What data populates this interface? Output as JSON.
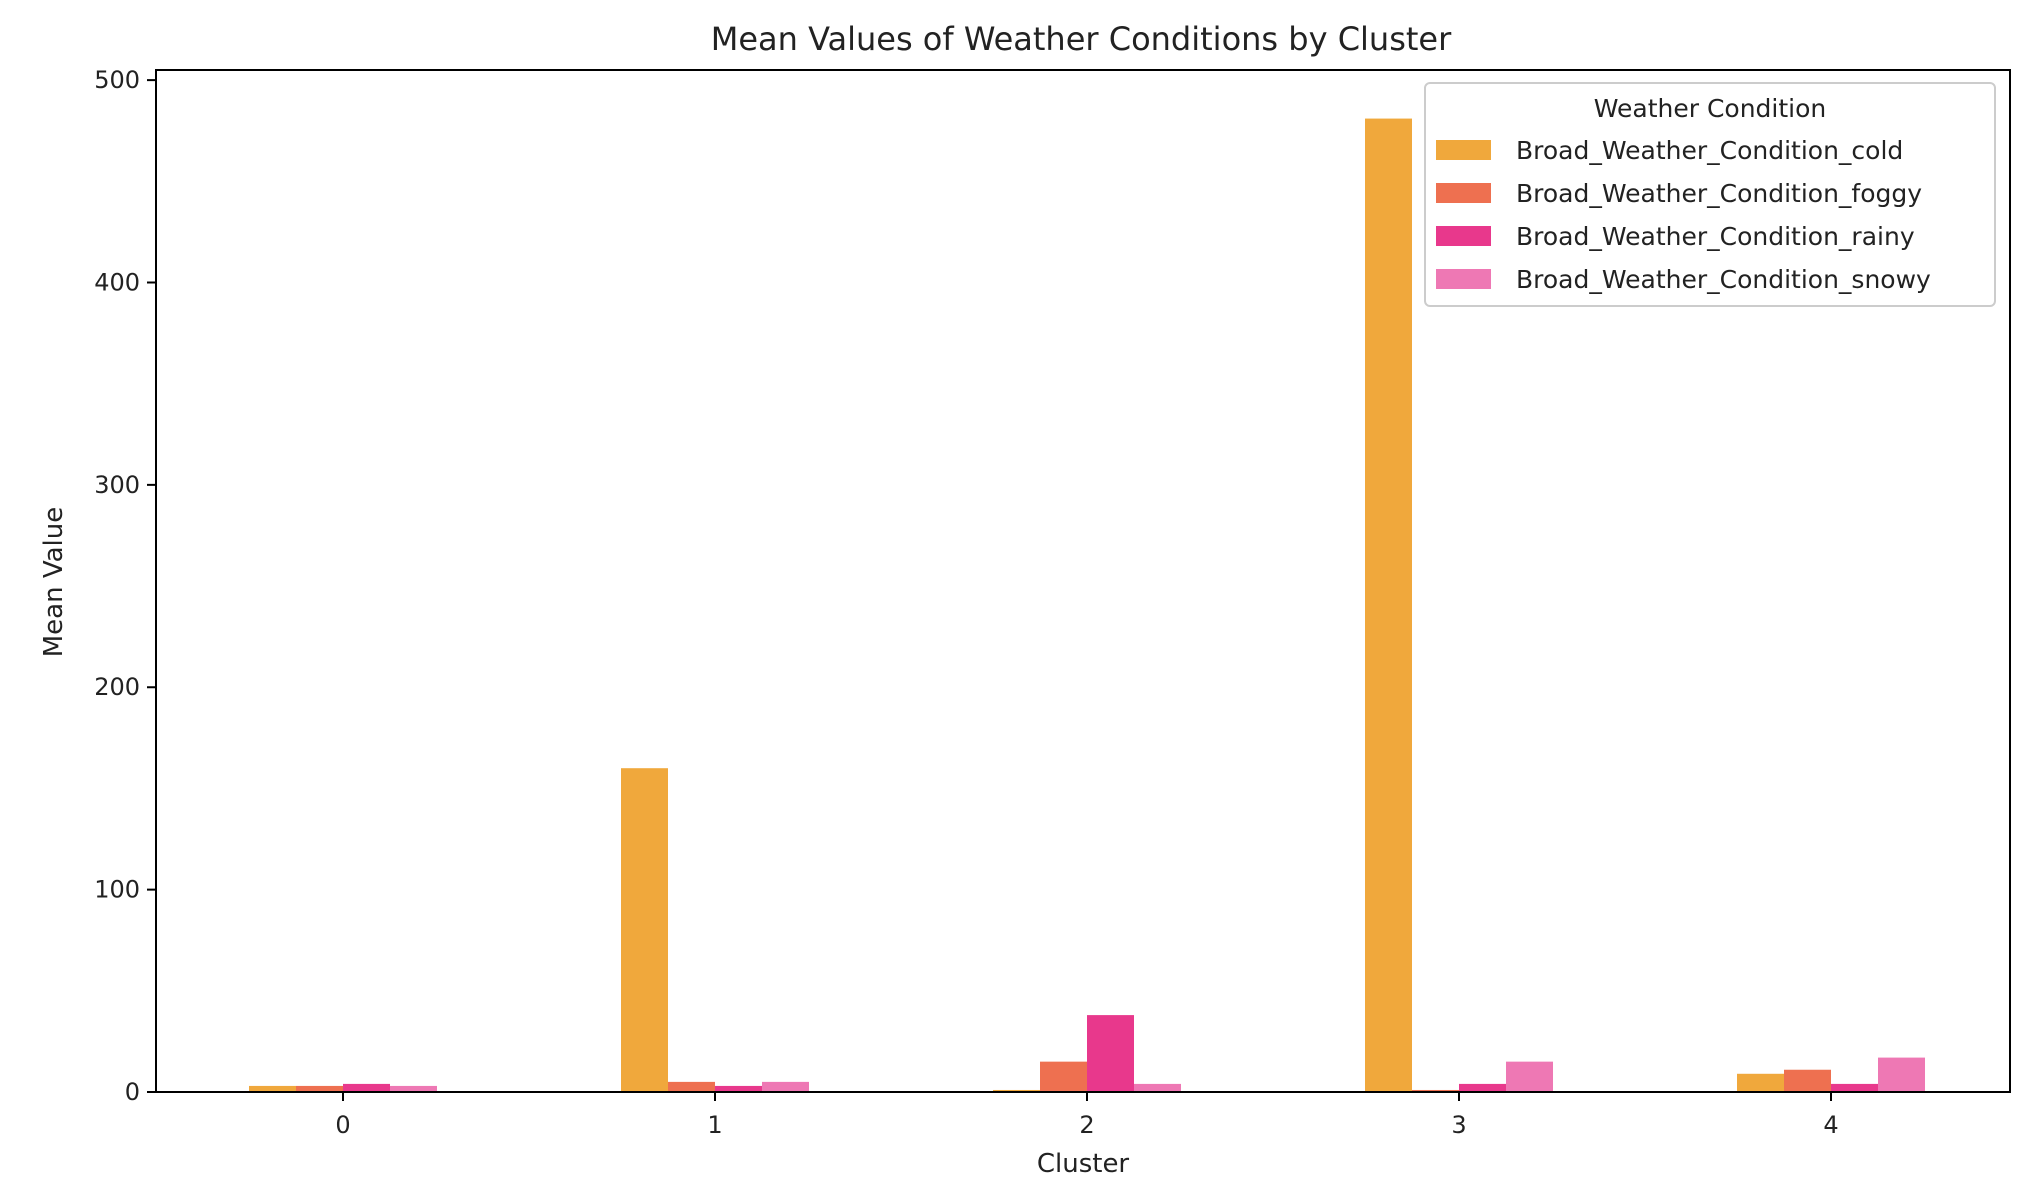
{
  "chart_data": {
    "type": "bar",
    "title": "Mean Values of Weather Conditions by Cluster",
    "xlabel": "Cluster",
    "ylabel": "Mean Value",
    "categories": [
      "0",
      "1",
      "2",
      "3",
      "4"
    ],
    "ylim": [
      0,
      505
    ],
    "yticks": [
      0,
      100,
      200,
      300,
      400,
      500
    ],
    "grid": false,
    "legend": {
      "title": "Weather Condition",
      "placement": "top-right"
    },
    "series": [
      {
        "name": "Broad_Weather_Condition_cold",
        "color": "#f0a83c",
        "values": [
          3,
          160,
          1,
          481,
          9
        ]
      },
      {
        "name": "Broad_Weather_Condition_foggy",
        "color": "#ee7050",
        "values": [
          3,
          5,
          15,
          1,
          11
        ]
      },
      {
        "name": "Broad_Weather_Condition_rainy",
        "color": "#e8388c",
        "values": [
          4,
          3,
          38,
          4,
          4
        ]
      },
      {
        "name": "Broad_Weather_Condition_snowy",
        "color": "#ee78b4",
        "values": [
          3,
          5,
          4,
          15,
          17
        ]
      }
    ]
  }
}
